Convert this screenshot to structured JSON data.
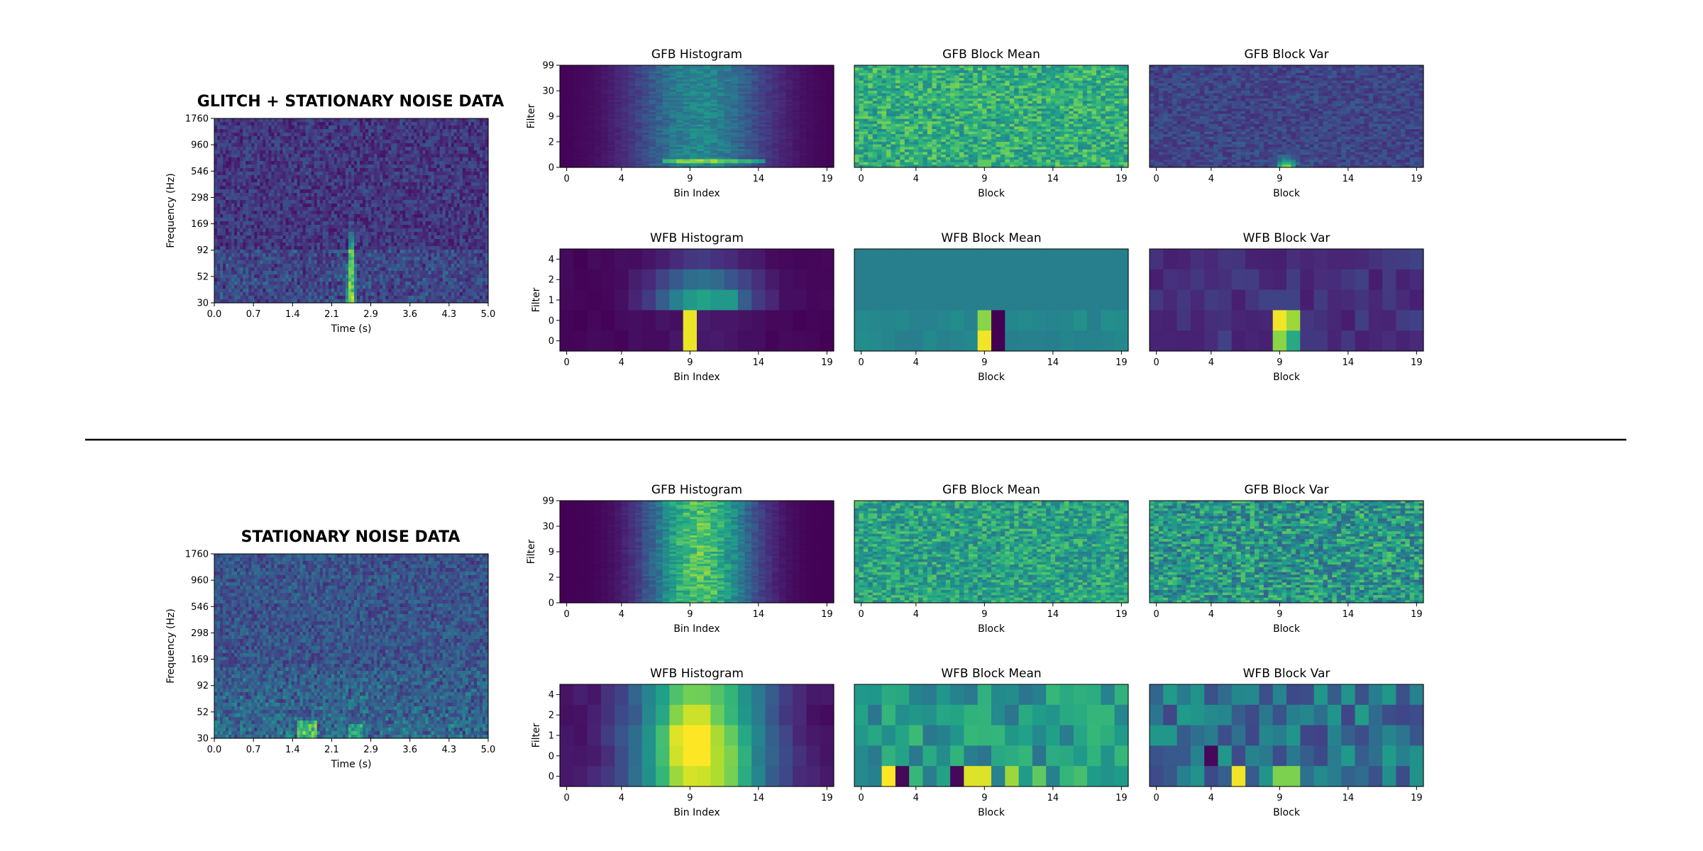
{
  "sections": [
    {
      "title": "GLITCH + STATIONARY NOISE DATA",
      "spectrogram": {
        "xlabel": "Time (s)",
        "ylabel": "Frequency (Hz)",
        "xticks": [
          "0.0",
          "0.7",
          "1.4",
          "2.1",
          "2.9",
          "3.6",
          "4.3",
          "5.0"
        ],
        "yticks": [
          "1760",
          "960",
          "546",
          "298",
          "169",
          "92",
          "52",
          "30"
        ],
        "feature": "glitch"
      },
      "panels": [
        {
          "title": "GFB Histogram",
          "xlabel": "Bin Index",
          "ylabel": "Filter",
          "kind": "gfb_hist"
        },
        {
          "title": "GFB Block Mean",
          "xlabel": "Block",
          "ylabel": "",
          "kind": "gfb_mean"
        },
        {
          "title": "GFB Block Var",
          "xlabel": "Block",
          "ylabel": "",
          "kind": "gfb_var"
        },
        {
          "title": "WFB Histogram",
          "xlabel": "Bin Index",
          "ylabel": "Filter",
          "kind": "wfb_hist"
        },
        {
          "title": "WFB Block Mean",
          "xlabel": "Block",
          "ylabel": "",
          "kind": "wfb_mean"
        },
        {
          "title": "WFB Block Var",
          "xlabel": "Block",
          "ylabel": "",
          "kind": "wfb_var"
        }
      ]
    },
    {
      "title": "STATIONARY NOISE DATA",
      "spectrogram": {
        "xlabel": "Time (s)",
        "ylabel": "Frequency (Hz)",
        "xticks": [
          "0.0",
          "0.7",
          "1.4",
          "2.1",
          "2.9",
          "3.6",
          "4.3",
          "5.0"
        ],
        "yticks": [
          "1760",
          "960",
          "546",
          "298",
          "169",
          "92",
          "52",
          "30"
        ],
        "feature": "noise"
      },
      "panels": [
        {
          "title": "GFB Histogram",
          "xlabel": "Bin Index",
          "ylabel": "Filter",
          "kind": "gfb_hist"
        },
        {
          "title": "GFB Block Mean",
          "xlabel": "Block",
          "ylabel": "",
          "kind": "gfb_mean"
        },
        {
          "title": "GFB Block Var",
          "xlabel": "Block",
          "ylabel": "",
          "kind": "gfb_var"
        },
        {
          "title": "WFB Histogram",
          "xlabel": "Bin Index",
          "ylabel": "Filter",
          "kind": "wfb_hist"
        },
        {
          "title": "WFB Block Mean",
          "xlabel": "Block",
          "ylabel": "",
          "kind": "wfb_mean"
        },
        {
          "title": "WFB Block Var",
          "xlabel": "Block",
          "ylabel": "",
          "kind": "wfb_var"
        }
      ]
    }
  ],
  "gfb_xticks": [
    "0",
    "4",
    "9",
    "14",
    "19"
  ],
  "gfb_yticks": [
    "99",
    "30",
    "9",
    "2",
    "0"
  ],
  "wfb_xticks": [
    "0",
    "4",
    "9",
    "14",
    "19"
  ],
  "wfb_yticks": [
    "4",
    "2",
    "1",
    "0",
    "0"
  ],
  "chart_data": [
    {
      "type": "heatmap",
      "title": "GLITCH + STATIONARY NOISE DATA",
      "xlabel": "Time (s)",
      "ylabel": "Frequency (Hz)",
      "x_range": [
        0.0,
        5.0
      ],
      "y_tick_labels": [
        "1760",
        "960",
        "546",
        "298",
        "169",
        "92",
        "52",
        "30"
      ],
      "colormap": "viridis",
      "annotations": [
        "bright vertical glitch near t=2.5 s extending from 30 Hz to ~200 Hz"
      ]
    },
    {
      "type": "heatmap",
      "title": "GFB Histogram",
      "xlabel": "Bin Index",
      "ylabel": "Filter",
      "x_tick_labels": [
        "0",
        "4",
        "9",
        "14",
        "19"
      ],
      "y_tick_labels": [
        "99",
        "30",
        "9",
        "2",
        "0"
      ],
      "peak_bin": 10
    },
    {
      "type": "heatmap",
      "title": "WFB Histogram",
      "xlabel": "Bin Index",
      "ylabel": "Filter",
      "grid_size": [
        20,
        5
      ],
      "peak_cell": {
        "bin": 9,
        "filter_rows": [
          0,
          1
        ]
      }
    },
    {
      "type": "heatmap",
      "title": "STATIONARY NOISE DATA",
      "xlabel": "Time (s)",
      "ylabel": "Frequency (Hz)",
      "x_range": [
        0.0,
        5.0
      ],
      "y_tick_labels": [
        "1760",
        "960",
        "546",
        "298",
        "169",
        "92",
        "52",
        "30"
      ],
      "colormap": "viridis"
    }
  ],
  "colors": {
    "viridis": [
      "#440154",
      "#482878",
      "#3e4989",
      "#31688e",
      "#26828e",
      "#1f9e89",
      "#35b779",
      "#6ece58",
      "#b5de2b",
      "#fde725"
    ],
    "divider": "#000000"
  }
}
